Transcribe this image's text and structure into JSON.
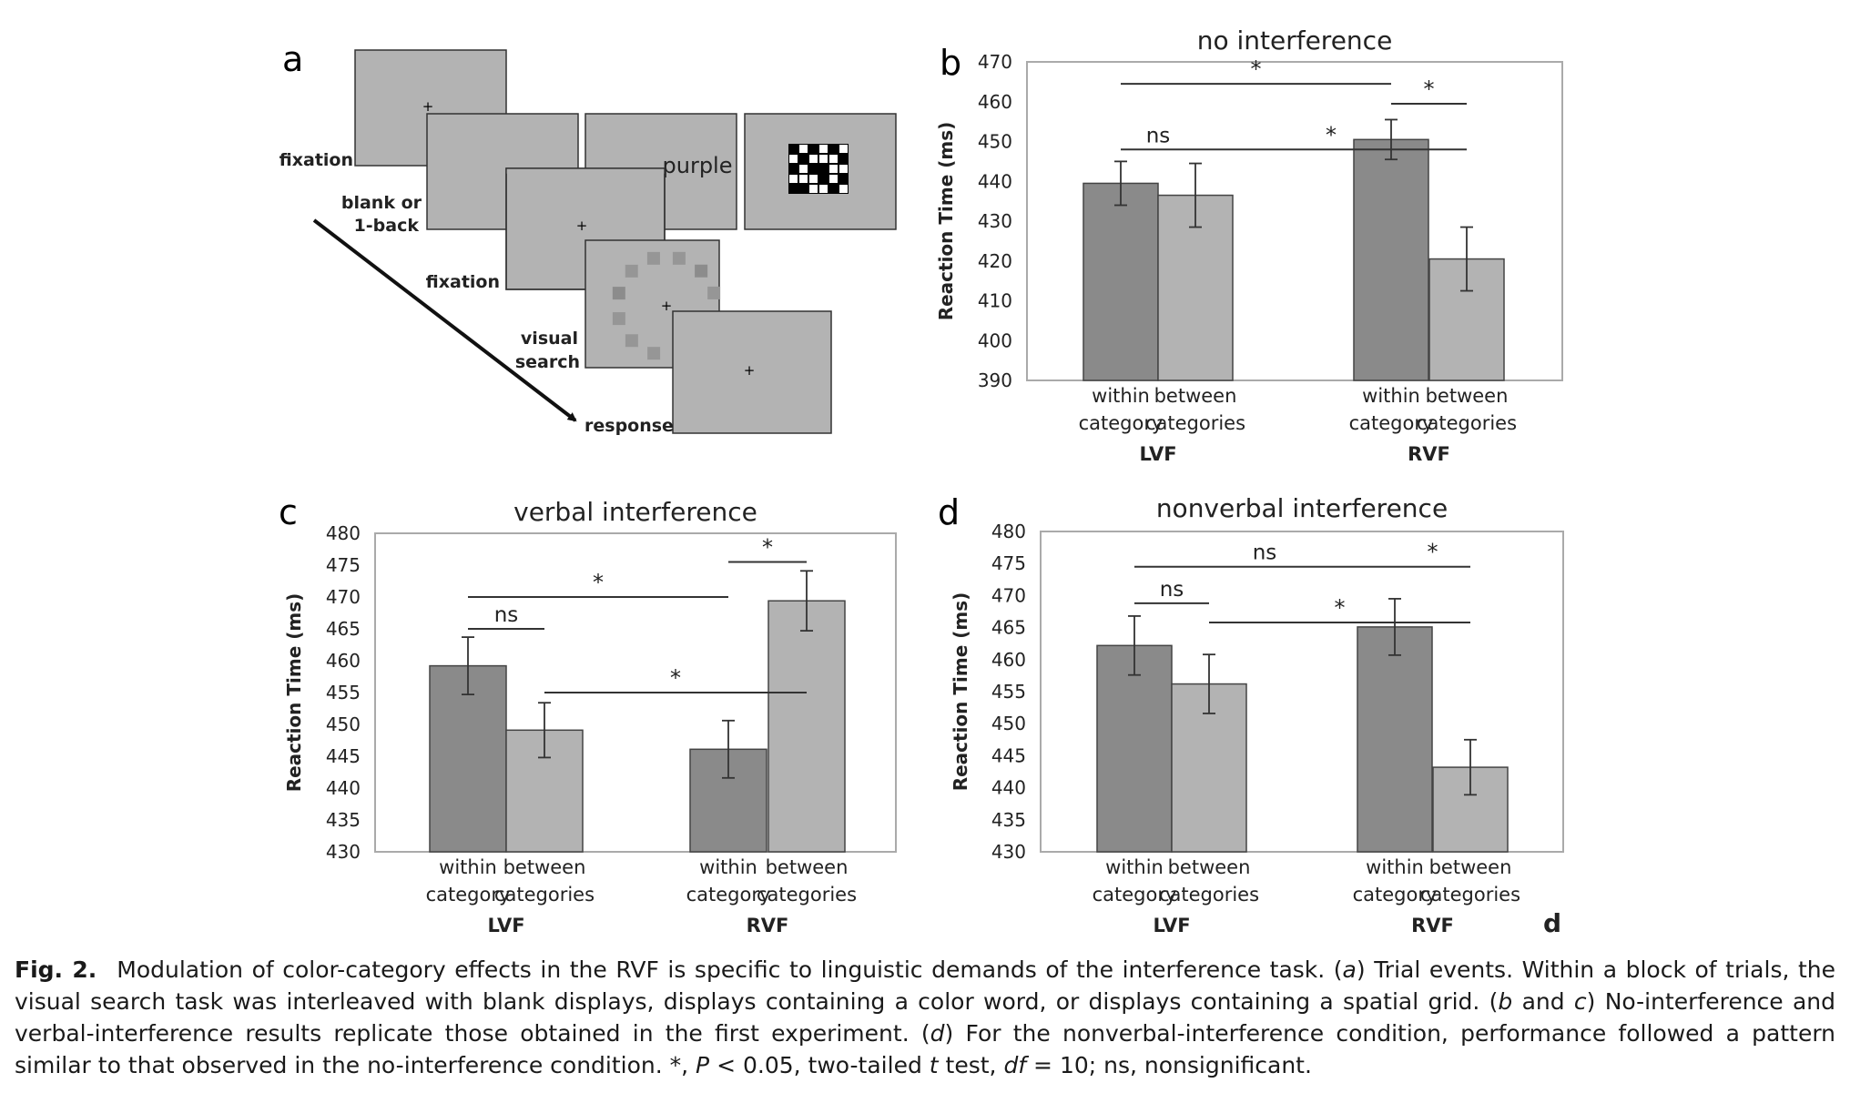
{
  "panel_a": {
    "letter": "a",
    "labels": {
      "fixation1": "fixation",
      "blank_line1": "blank or",
      "blank_line2": "1-back",
      "fixation2": "fixation",
      "visual_line1": "visual",
      "visual_line2": "search",
      "response": "response"
    },
    "screens": {
      "color_word": "purple",
      "fixation_mark": "+"
    },
    "grid_pattern": [
      [
        0,
        1,
        0,
        1,
        0,
        1
      ],
      [
        1,
        0,
        1,
        1,
        1,
        0
      ],
      [
        0,
        1,
        0,
        0,
        1,
        1
      ],
      [
        1,
        1,
        1,
        0,
        1,
        0
      ],
      [
        0,
        0,
        1,
        1,
        0,
        1
      ]
    ]
  },
  "chart_data": [
    {
      "panel": "b",
      "type": "bar",
      "title": "no interference",
      "ylabel": "Reaction Time (ms)",
      "ylim": [
        390,
        470
      ],
      "ytick_step": 10,
      "groups": [
        "LVF",
        "RVF"
      ],
      "categories": [
        [
          "within",
          "category"
        ],
        [
          "between",
          "categories"
        ]
      ],
      "series": [
        {
          "values": [
            439.5,
            450.5
          ],
          "errors": [
            5.5,
            5.0
          ],
          "color": "#8a8a8a"
        },
        {
          "values": [
            436.5,
            420.5
          ],
          "errors": [
            8.0,
            8.0
          ],
          "color": "#b3b3b3"
        }
      ],
      "annotations": [
        {
          "label": "*",
          "from": [
            0,
            0
          ],
          "to": [
            1,
            0
          ],
          "y": 464.5
        },
        {
          "label": "*",
          "from": [
            1,
            0
          ],
          "to": [
            1,
            1
          ],
          "y": 459.5
        },
        {
          "label": "ns",
          "from": [
            0,
            0
          ],
          "to": [
            0,
            1
          ],
          "y": 448
        },
        {
          "label": "*",
          "from": [
            0,
            1
          ],
          "to": [
            1,
            1
          ],
          "y": 448
        }
      ]
    },
    {
      "panel": "c",
      "type": "bar",
      "title": "verbal interference",
      "ylabel": "Reaction Time (ms)",
      "ylim": [
        430,
        480
      ],
      "ytick_step": 5,
      "groups": [
        "LVF",
        "RVF"
      ],
      "categories": [
        [
          "within",
          "category"
        ],
        [
          "between",
          "categories"
        ]
      ],
      "series": [
        {
          "values": [
            459.2,
            446.1
          ],
          "errors": [
            4.5,
            4.5
          ],
          "color": "#8a8a8a"
        },
        {
          "values": [
            449.1,
            469.4
          ],
          "errors": [
            4.3,
            4.7
          ],
          "color": "#b3b3b3"
        }
      ],
      "annotations": [
        {
          "label": "*",
          "from": [
            0,
            0
          ],
          "to": [
            1,
            0
          ],
          "y": 470.0
        },
        {
          "label": "*",
          "from": [
            1,
            0
          ],
          "to": [
            1,
            1
          ],
          "y": 475.5
        },
        {
          "label": "ns",
          "from": [
            0,
            0
          ],
          "to": [
            0,
            1
          ],
          "y": 465.0
        },
        {
          "label": "*",
          "from": [
            0,
            1
          ],
          "to": [
            1,
            1
          ],
          "y": 455.0
        }
      ]
    },
    {
      "panel": "d",
      "type": "bar",
      "title": "nonverbal interference",
      "ylabel": "Reaction Time (ms)",
      "ylim": [
        430,
        480
      ],
      "ytick_step": 5,
      "groups": [
        "LVF",
        "RVF"
      ],
      "categories": [
        [
          "within",
          "category"
        ],
        [
          "between",
          "categories"
        ]
      ],
      "series": [
        {
          "values": [
            462.2,
            465.1
          ],
          "errors": [
            4.6,
            4.4
          ],
          "color": "#8a8a8a"
        },
        {
          "values": [
            456.2,
            443.2
          ],
          "errors": [
            4.6,
            4.3
          ],
          "color": "#b3b3b3"
        }
      ],
      "annotations": [
        {
          "label": "ns",
          "from": [
            0,
            0
          ],
          "to": [
            1,
            0
          ],
          "y": 474.5
        },
        {
          "label": "*",
          "from": [
            1,
            0
          ],
          "to": [
            1,
            1
          ],
          "y": 474.5
        },
        {
          "label": "ns",
          "from": [
            0,
            0
          ],
          "to": [
            0,
            1
          ],
          "y": 468.8
        },
        {
          "label": "*",
          "from": [
            0,
            1
          ],
          "to": [
            1,
            1
          ],
          "y": 465.8
        }
      ],
      "corner_letter": "d"
    }
  ],
  "caption": {
    "fig_label": "Fig. 2.",
    "parts": [
      {
        "t": "Modulation of color-category effects in the RVF is specific to linguistic demands of the interference task. ("
      },
      {
        "t": "a",
        "i": true
      },
      {
        "t": ") Trial events. Within a block of trials, the visual search task was interleaved with blank displays, displays containing a color word, or displays containing a spatial grid. ("
      },
      {
        "t": "b",
        "i": true
      },
      {
        "t": " and "
      },
      {
        "t": "c",
        "i": true
      },
      {
        "t": ") No-interference and verbal-interference results replicate those obtained in the first experiment. ("
      },
      {
        "t": "d",
        "i": true
      },
      {
        "t": ") For the nonverbal-interference condition, performance followed a pattern similar to that observed in the no-interference condition. *, "
      },
      {
        "t": "P",
        "i": true
      },
      {
        "t": " < 0.05, two-tailed "
      },
      {
        "t": "t",
        "i": true
      },
      {
        "t": " test, "
      },
      {
        "t": "df",
        "i": true
      },
      {
        "t": " = 10; ns, nonsignificant."
      }
    ]
  }
}
